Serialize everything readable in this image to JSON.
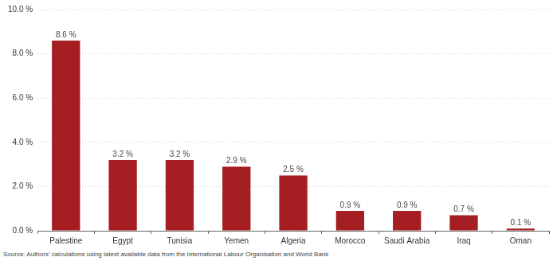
{
  "chart_data": {
    "type": "bar",
    "categories": [
      "Palestine",
      "Egypt",
      "Tunisia",
      "Yemen",
      "Algeria",
      "Morocco",
      "Saudi Arabia",
      "Iraq",
      "Oman"
    ],
    "values": [
      8.6,
      3.2,
      3.2,
      2.9,
      2.5,
      0.9,
      0.9,
      0.7,
      0.1
    ],
    "value_labels": [
      "8.6 %",
      "3.2 %",
      "3.2 %",
      "2.9 %",
      "2.5 %",
      "0.9 %",
      "0.9 %",
      "0.7 %",
      "0.1 %"
    ],
    "data_labels": true,
    "color": "#a51e22",
    "ylim": [
      0,
      10
    ],
    "yticks": [
      {
        "value": 0,
        "label": "0.0 %"
      },
      {
        "value": 2,
        "label": "2.0 %"
      },
      {
        "value": 4,
        "label": "4.0 %"
      },
      {
        "value": 6,
        "label": "6.0 %"
      },
      {
        "value": 8,
        "label": "8.0 %"
      },
      {
        "value": 10,
        "label": "10.0 %"
      }
    ],
    "grid": true,
    "source": "Source: Authors' calculations using latest available data from the International Labour Organisation and World Bank"
  }
}
